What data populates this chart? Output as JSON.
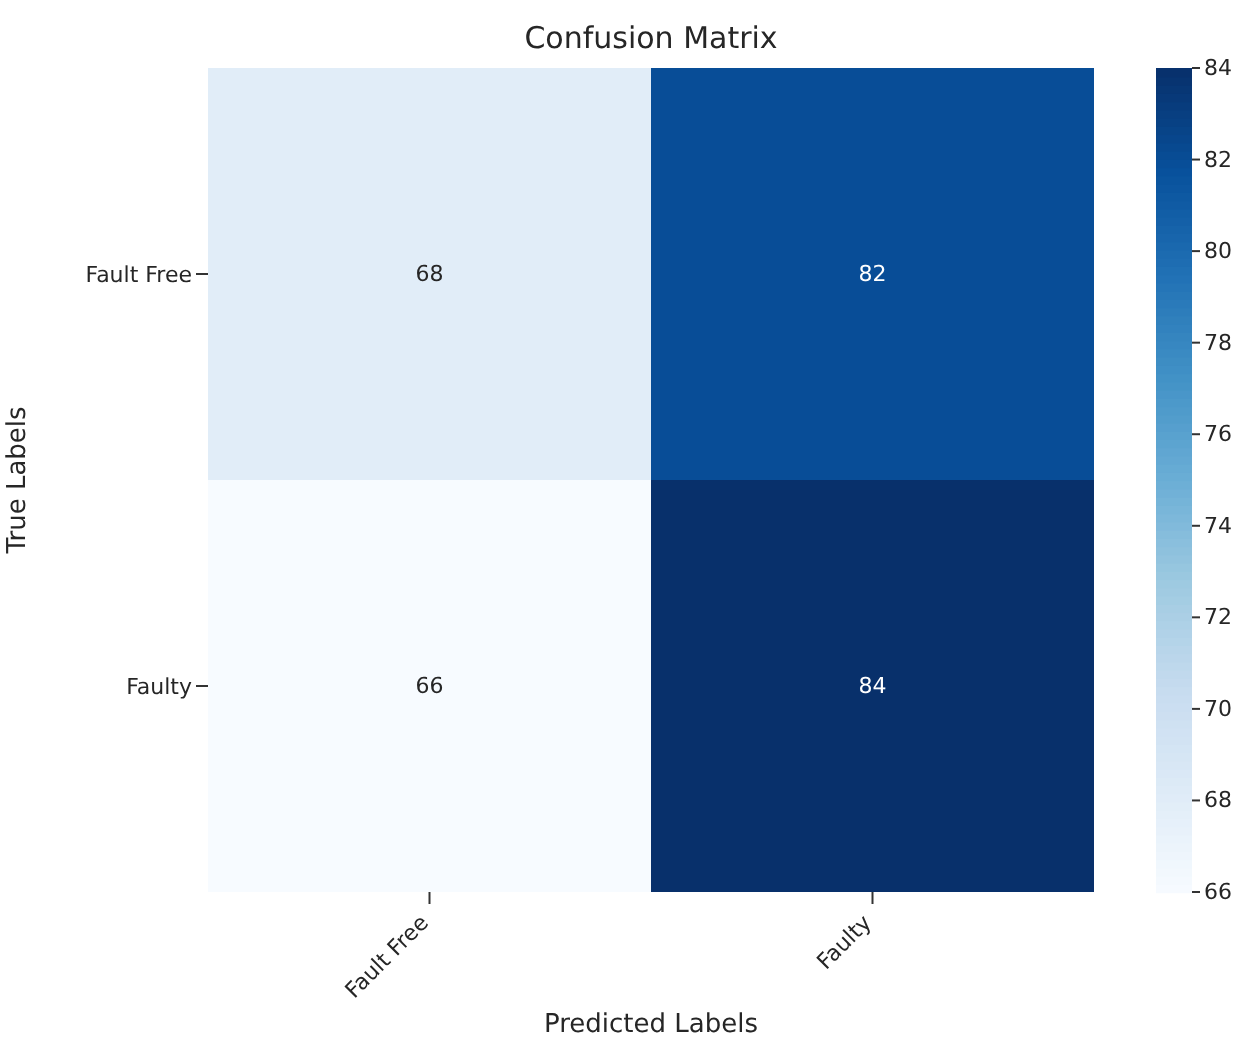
{
  "chart_data": {
    "type": "heatmap",
    "title": "Confusion Matrix",
    "xlabel": "Predicted Labels",
    "ylabel": "True Labels",
    "categories": [
      "Fault Free",
      "Faulty"
    ],
    "y_categories": [
      "Fault Free",
      "Faulty"
    ],
    "cells": [
      [
        68,
        82
      ],
      [
        66,
        84
      ]
    ],
    "clim": [
      66,
      84
    ],
    "cticks": [
      66,
      68,
      70,
      72,
      74,
      76,
      78,
      80,
      82,
      84
    ],
    "data_labels": true
  }
}
